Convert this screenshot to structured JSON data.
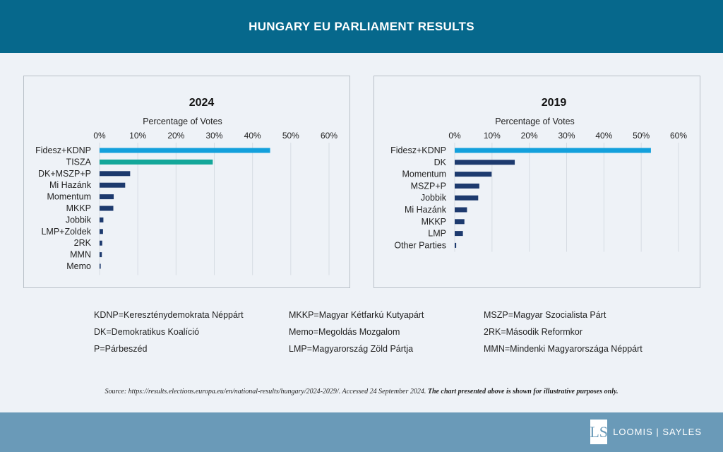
{
  "header": {
    "title": "HUNGARY EU PARLIAMENT RESULTS"
  },
  "chart_data": [
    {
      "type": "bar",
      "orientation": "horizontal",
      "title": "2024",
      "xlabel": "Percentage of Votes",
      "xlim": [
        0,
        60
      ],
      "xticks": [
        "0%",
        "10%",
        "20%",
        "30%",
        "40%",
        "50%",
        "60%"
      ],
      "categories": [
        "Fidesz+KDNP",
        "TISZA",
        "DK+MSZP+P",
        "Mi Hazánk",
        "Momentum",
        "MKKP",
        "Jobbik",
        "LMP+Zoldek",
        "2RK",
        "MMN",
        "Memo"
      ],
      "values": [
        44.6,
        29.6,
        8.0,
        6.7,
        3.7,
        3.6,
        1.0,
        0.9,
        0.7,
        0.6,
        0.3
      ],
      "colors": [
        "#13a0dc",
        "#14a79a",
        "#1d3a6e",
        "#1d3a6e",
        "#1d3a6e",
        "#1d3a6e",
        "#1d3a6e",
        "#1d3a6e",
        "#1d3a6e",
        "#1d3a6e",
        "#1d3a6e"
      ]
    },
    {
      "type": "bar",
      "orientation": "horizontal",
      "title": "2019",
      "xlabel": "Percentage of Votes",
      "xlim": [
        0,
        60
      ],
      "xticks": [
        "0%",
        "10%",
        "20%",
        "30%",
        "40%",
        "50%",
        "60%"
      ],
      "categories": [
        "Fidesz+KDNP",
        "DK",
        "Momentum",
        "MSZP+P",
        "Jobbik",
        "Mi Hazánk",
        "MKKP",
        "LMP",
        "Other Parties"
      ],
      "values": [
        52.6,
        16.1,
        9.9,
        6.6,
        6.3,
        3.3,
        2.6,
        2.2,
        0.4
      ],
      "colors": [
        "#13a0dc",
        "#1d3a6e",
        "#1d3a6e",
        "#1d3a6e",
        "#1d3a6e",
        "#1d3a6e",
        "#1d3a6e",
        "#1d3a6e",
        "#1d3a6e"
      ]
    }
  ],
  "legend": {
    "col1": [
      "KDNP=Kereszténydemokrata Néppárt",
      "DK=Demokratikus Koalíció",
      "P=Párbeszéd"
    ],
    "col2": [
      "MKKP=Magyar Kétfarkú Kutyapárt",
      "Memo=Megoldás Mozgalom",
      "LMP=Magyarország Zöld Pártja"
    ],
    "col3": [
      "MSZP=Magyar Szocialista Párt",
      "2RK=Második Reformkor",
      "MMN=Mindenki Magyarországa Néppárt"
    ]
  },
  "source": {
    "text": "Source: https://results.elections.europa.eu/en/national-results/hungary/2024-2029/. Accessed 24 September 2024. ",
    "bold": "The chart presented above is shown for illustrative purposes only."
  },
  "footer": {
    "logo_text": "LOOMIS | SAYLES",
    "logo_mark": "LS"
  }
}
